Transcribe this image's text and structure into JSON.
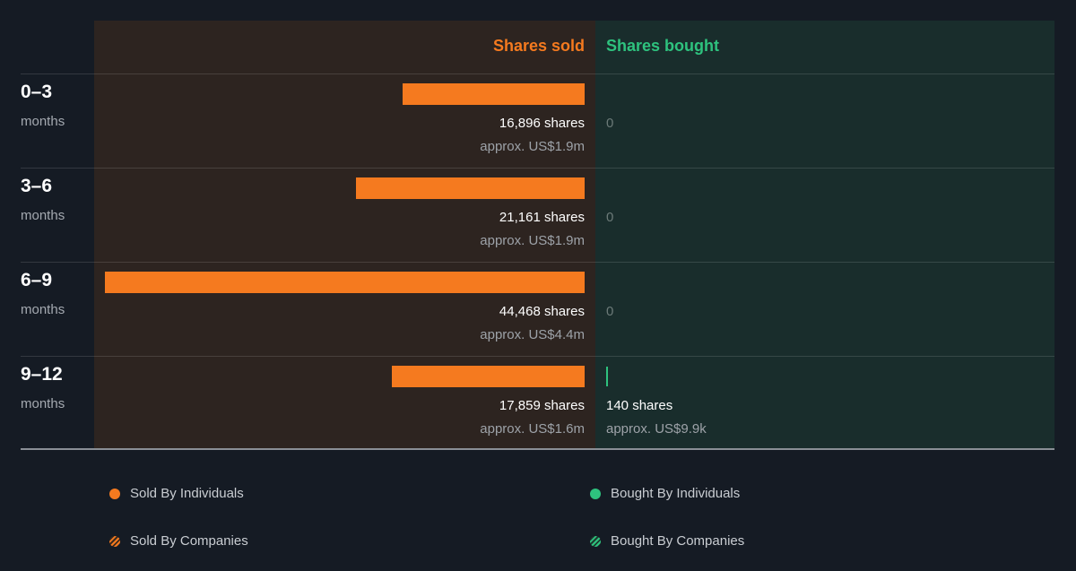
{
  "header": {
    "sold_label": "Shares sold",
    "bought_label": "Shares bought"
  },
  "colors": {
    "sold": "#f57a1f",
    "bought": "#2ec27e",
    "background": "#151b24"
  },
  "rows": [
    {
      "range": "0–3",
      "unit": "months",
      "sold_shares": "16,896 shares",
      "sold_approx": "approx. US$1.9m",
      "bought_text": "0"
    },
    {
      "range": "3–6",
      "unit": "months",
      "sold_shares": "21,161 shares",
      "sold_approx": "approx. US$1.9m",
      "bought_text": "0"
    },
    {
      "range": "6–9",
      "unit": "months",
      "sold_shares": "44,468 shares",
      "sold_approx": "approx. US$4.4m",
      "bought_text": "0"
    },
    {
      "range": "9–12",
      "unit": "months",
      "sold_shares": "17,859 shares",
      "sold_approx": "approx. US$1.6m",
      "bought_shares": "140 shares",
      "bought_approx": "approx. US$9.9k"
    }
  ],
  "legend": [
    {
      "label": "Sold By Individuals",
      "icon": "orange-dot-icon"
    },
    {
      "label": "Sold By Companies",
      "icon": "orange-hatched-icon"
    },
    {
      "label": "Bought By Individuals",
      "icon": "green-dot-icon"
    },
    {
      "label": "Bought By Companies",
      "icon": "green-hatched-icon"
    }
  ],
  "chart_data": {
    "type": "bar",
    "categories": [
      "0–3 months",
      "3–6 months",
      "6–9 months",
      "9–12 months"
    ],
    "series": [
      {
        "name": "Shares sold",
        "values": [
          16896,
          21161,
          44468,
          17859
        ]
      },
      {
        "name": "Shares bought",
        "values": [
          0,
          0,
          0,
          140
        ]
      }
    ],
    "approx_values": {
      "sold": [
        "approx. US$1.9m",
        "approx. US$1.9m",
        "approx. US$4.4m",
        "approx. US$1.6m"
      ],
      "bought": [
        "",
        "",
        "",
        "approx. US$9.9k"
      ]
    },
    "legend": [
      "Sold By Individuals",
      "Sold By Companies",
      "Bought By Individuals",
      "Bought By Companies"
    ],
    "legend_placement": "bottom"
  }
}
